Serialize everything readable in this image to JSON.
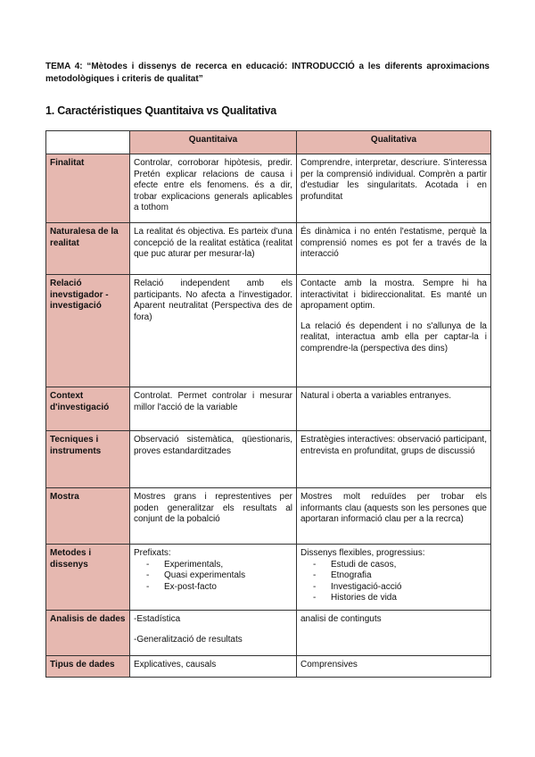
{
  "title": "TEMA 4: “Mètodes i dissenys de recerca en educació: INTRODUCCIÓ a les diferents aproximacions metodològiques i criteris de qualitat”",
  "heading": "1. Caractéristiques Quantitaiva vs Qualitativa",
  "table": {
    "colors": {
      "header_bg": "#e6b8b0"
    },
    "headers": [
      "",
      "Quantitaiva",
      "Qualitativa"
    ],
    "rows": [
      {
        "label": "Finalitat",
        "quant": [
          "Controlar, corroborar hipòtesis, predir. Pretén explicar relacions de causa i efecte entre els fenomens. és a dir, trobar explicacions generals aplicables a tothom"
        ],
        "qual": [
          "Comprendre, interpretar, descriure. S'interessa per  la comprensió individual. Comprèn a partir d'estudiar les singularitats. Acotada i en profunditat"
        ]
      },
      {
        "label": "Naturalesa de la realitat",
        "quant": [
          "La realitat és objectiva. Es parteix d'una concepció de la realitat estàtica (realitat que puc aturar per mesurar-la)"
        ],
        "qual": [
          "És dinàmica i no entén l'estatisme, perquè la comprensió nomes es pot fer a través de la interacció"
        ]
      },
      {
        "label": "Relació inevstigador -investigació",
        "quant": [
          "Relació independent amb els participants. No afecta a l'investigador. Aparent neutralitat (Perspectiva des de fora)"
        ],
        "qual": [
          "Contacte amb la mostra. Sempre hi ha interactivitat i bidireccionalitat. Es manté un apropament optim.",
          "La relació és dependent i no s'allunya de la realitat, interactua amb ella per captar-la i comprendre-la (perspectiva des dins)"
        ]
      },
      {
        "label": "Context d'investigació",
        "quant": [
          "Controlat. Permet controlar i mesurar millor l'acció de la variable"
        ],
        "qual": [
          "Natural i oberta a variables entranyes."
        ]
      },
      {
        "label": "Tecniques i instruments",
        "quant": [
          "Observació sistemàtica, qüestionaris, proves estandarditzades"
        ],
        "qual": [
          "Estratègies interactives: observació participant, entrevista en profunditat, grups de discussió"
        ]
      },
      {
        "label": "Mostra",
        "quant": [
          "Mostres grans i represtentives per poden generalitzar els resultats al conjunt de la pobalció"
        ],
        "qual": [
          "Mostres molt reduïdes per trobar els informants clau (aquests son les persones que aportaran informació clau per a la recrca)"
        ]
      },
      {
        "label": "Metodes i dissenys",
        "quant": [
          "Prefixats:"
        ],
        "quant_list": [
          "Experimentals,",
          "Quasi experimentals",
          "Ex-post-facto"
        ],
        "qual": [
          "Dissenys flexibles, progressius:"
        ],
        "qual_list": [
          "Estudi de casos,",
          "Etnografia",
          "Investigació-acció",
          "Histories de vida"
        ]
      },
      {
        "label": "Analisis de dades",
        "quant": [
          "-Estadística",
          "-Generalització de resultats"
        ],
        "qual": [
          "analisi de continguts"
        ]
      },
      {
        "label": "Tipus de dades",
        "quant": [
          "Explicatives, causals"
        ],
        "qual": [
          "Comprensives"
        ]
      }
    ]
  }
}
